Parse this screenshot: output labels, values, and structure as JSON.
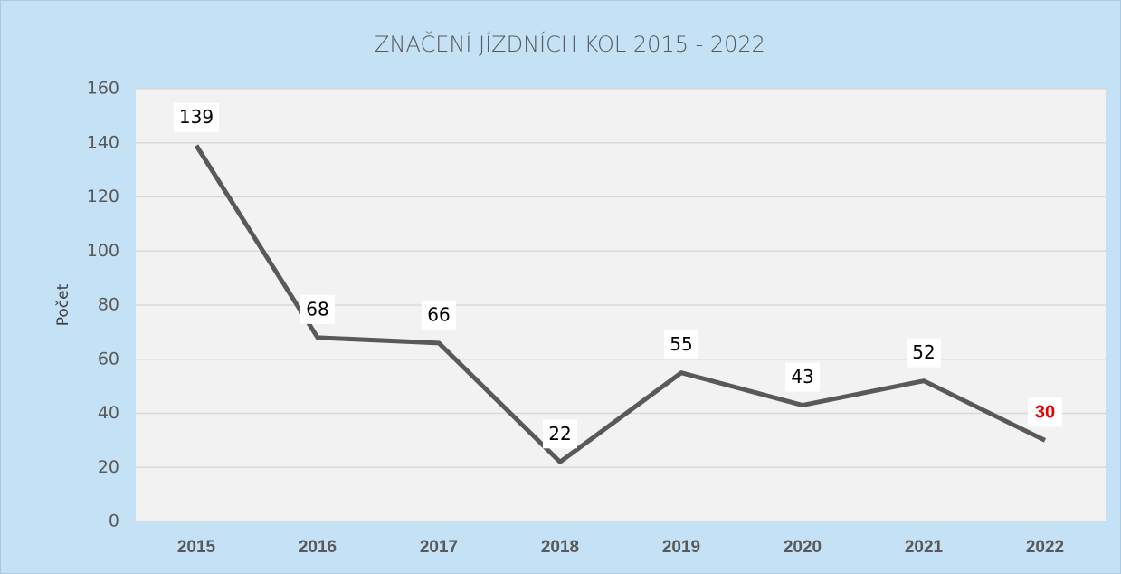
{
  "chart_data": {
    "type": "line",
    "title": "ZNAČENÍ JÍZDNÍCH KOL 2015 - 2022",
    "y_label": "Počet",
    "categories": [
      "2015",
      "2016",
      "2017",
      "2018",
      "2019",
      "2020",
      "2021",
      "2022"
    ],
    "series": [
      {
        "name": "Počet",
        "color": "#595959",
        "values": [
          139,
          68,
          66,
          22,
          55,
          43,
          52,
          30
        ]
      }
    ],
    "value_label_colors": [
      "#000000",
      "#000000",
      "#000000",
      "#000000",
      "#000000",
      "#000000",
      "#000000",
      "#e60000"
    ],
    "value_label_bold": [
      false,
      false,
      false,
      false,
      false,
      false,
      false,
      true
    ],
    "ylim": [
      0,
      160
    ],
    "yticks": [
      0,
      20,
      40,
      60,
      80,
      100,
      120,
      140,
      160
    ],
    "grid": true
  }
}
